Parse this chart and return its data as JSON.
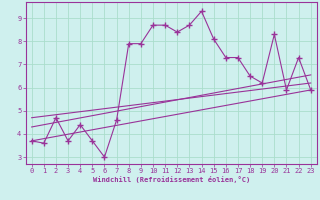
{
  "xlabel": "Windchill (Refroidissement éolien,°C)",
  "bg_color": "#cff0ee",
  "grid_color": "#aaddcc",
  "line_color": "#993399",
  "xlim": [
    -0.5,
    23.5
  ],
  "ylim": [
    2.7,
    9.7
  ],
  "yticks": [
    3,
    4,
    5,
    6,
    7,
    8,
    9
  ],
  "xticks": [
    0,
    1,
    2,
    3,
    4,
    5,
    6,
    7,
    8,
    9,
    10,
    11,
    12,
    13,
    14,
    15,
    16,
    17,
    18,
    19,
    20,
    21,
    22,
    23
  ],
  "series1_x": [
    0,
    1,
    2,
    3,
    4,
    5,
    6,
    7,
    8,
    9,
    10,
    11,
    12,
    13,
    14,
    15,
    16,
    17,
    18,
    19,
    20,
    21,
    22,
    23
  ],
  "series1_y": [
    3.7,
    3.6,
    4.7,
    3.7,
    4.4,
    3.7,
    3.0,
    4.6,
    7.9,
    7.9,
    8.7,
    8.7,
    8.4,
    8.7,
    9.3,
    8.1,
    7.3,
    7.3,
    6.5,
    6.2,
    8.3,
    5.9,
    7.3,
    5.9
  ],
  "series2_x": [
    0,
    23
  ],
  "series2_y": [
    3.7,
    5.9
  ],
  "series3_x": [
    0,
    23
  ],
  "series3_y": [
    4.3,
    6.55
  ],
  "series4_x": [
    0,
    23
  ],
  "series4_y": [
    4.7,
    6.2
  ]
}
